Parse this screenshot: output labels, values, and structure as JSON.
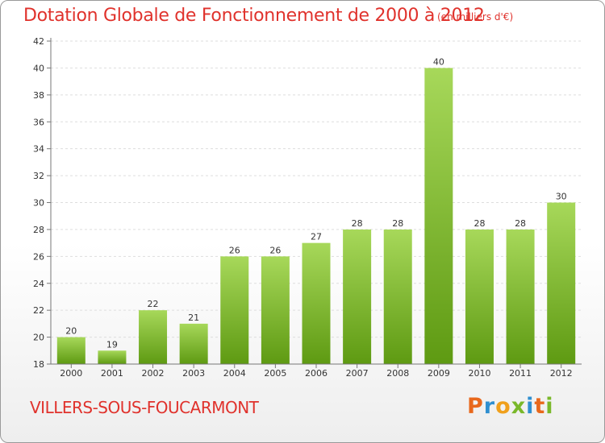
{
  "title": "Dotation Globale de Fonctionnement de 2000 à 2012",
  "subtitle": "(en milliers d'€)",
  "city": "VILLERS-SOUS-FOUCARMONT",
  "brand": {
    "letters": [
      "P",
      "r",
      "o",
      "x",
      "i",
      "t",
      "i"
    ],
    "colors": [
      "#e8681c",
      "#2f8fd0",
      "#f0a01c",
      "#7ab82a",
      "#2f8fd0",
      "#e8681c",
      "#7ab82a"
    ]
  },
  "colors": {
    "title": "#e0322c",
    "bar_light": "#a7d85a",
    "bar_dark": "#5e9a12"
  },
  "chart_data": {
    "type": "bar",
    "title": "Dotation Globale de Fonctionnement de 2000 à 2012",
    "xlabel": "",
    "ylabel": "",
    "categories": [
      "2000",
      "2001",
      "2002",
      "2003",
      "2004",
      "2005",
      "2006",
      "2007",
      "2008",
      "2009",
      "2010",
      "2011",
      "2012"
    ],
    "values": [
      20,
      19,
      22,
      21,
      26,
      26,
      27,
      28,
      28,
      40,
      28,
      28,
      30
    ],
    "ylim": [
      18,
      42
    ],
    "yticks": [
      18,
      20,
      22,
      24,
      26,
      28,
      30,
      32,
      34,
      36,
      38,
      40,
      42
    ],
    "grid": true
  }
}
